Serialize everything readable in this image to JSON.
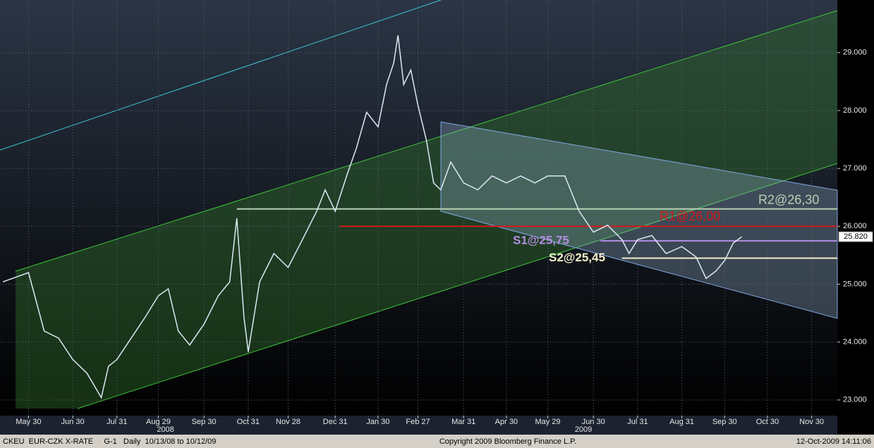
{
  "chart_data": {
    "type": "line",
    "header": "CKEU  EUR-CZK X-RATE     G-1   Daily  10/13/08 to 10/12/09",
    "copyright": "Copyright 2009 Bloomberg Finance L.P.",
    "timestamp": "12-Oct-2009 14:11:06",
    "xlim": [
      "2008-05-10",
      "2009-12-18"
    ],
    "ylim": [
      22.73,
      29.91
    ],
    "xticks": [
      {
        "value": "2008-05-30",
        "label": "May 30"
      },
      {
        "value": "2008-06-30",
        "label": "Jun 30"
      },
      {
        "value": "2008-07-31",
        "label": "Jul 31"
      },
      {
        "value": "2008-08-29",
        "label": "Aug 29"
      },
      {
        "value": "2008-09-30",
        "label": "Sep 30"
      },
      {
        "value": "2008-10-31",
        "label": "Oct 31"
      },
      {
        "value": "2008-11-28",
        "label": "Nov 28"
      },
      {
        "value": "2008-12-31",
        "label": "Dec 31"
      },
      {
        "value": "2009-01-30",
        "label": "Jan 30"
      },
      {
        "value": "2009-02-27",
        "label": "Feb 27"
      },
      {
        "value": "2009-03-31",
        "label": "Mar 31"
      },
      {
        "value": "2009-04-30",
        "label": "Apr 30"
      },
      {
        "value": "2009-05-29",
        "label": "May 29"
      },
      {
        "value": "2009-06-30",
        "label": "Jun 30"
      },
      {
        "value": "2009-07-31",
        "label": "Jul 31"
      },
      {
        "value": "2009-08-31",
        "label": "Aug 31"
      },
      {
        "value": "2009-09-30",
        "label": "Sep 30"
      },
      {
        "value": "2009-10-30",
        "label": "Oct 30"
      },
      {
        "value": "2009-11-30",
        "label": "Nov 30"
      }
    ],
    "year_ticks": [
      {
        "value": "2008-09-03",
        "label": "2008"
      },
      {
        "value": "2009-06-23",
        "label": "2009"
      }
    ],
    "yticks": [
      {
        "value": 23,
        "label": "23.000"
      },
      {
        "value": 24,
        "label": "24.000"
      },
      {
        "value": 25,
        "label": "25.000"
      },
      {
        "value": 26,
        "label": "26.000"
      },
      {
        "value": 27,
        "label": "27.000"
      },
      {
        "value": 28,
        "label": "28.000"
      },
      {
        "value": 29,
        "label": "29.000"
      }
    ],
    "grid": true,
    "series": [
      {
        "name": "EUR-CZK",
        "color": "#dce8f4",
        "x": [
          "2008-05-12",
          "2008-05-30",
          "2008-06-10",
          "2008-06-20",
          "2008-06-30",
          "2008-07-10",
          "2008-07-20",
          "2008-07-25",
          "2008-07-31",
          "2008-08-10",
          "2008-08-20",
          "2008-08-29",
          "2008-09-05",
          "2008-09-12",
          "2008-09-20",
          "2008-09-30",
          "2008-10-10",
          "2008-10-18",
          "2008-10-23",
          "2008-10-28",
          "2008-10-31",
          "2008-11-08",
          "2008-11-18",
          "2008-11-28",
          "2008-12-08",
          "2008-12-18",
          "2008-12-24",
          "2008-12-31",
          "2009-01-08",
          "2009-01-15",
          "2009-01-22",
          "2009-01-30",
          "2009-02-05",
          "2009-02-10",
          "2009-02-13",
          "2009-02-17",
          "2009-02-22",
          "2009-02-27",
          "2009-03-05",
          "2009-03-10",
          "2009-03-15",
          "2009-03-22",
          "2009-03-31",
          "2009-04-10",
          "2009-04-20",
          "2009-04-30",
          "2009-05-10",
          "2009-05-20",
          "2009-05-29",
          "2009-06-10",
          "2009-06-20",
          "2009-06-30",
          "2009-07-10",
          "2009-07-20",
          "2009-07-25",
          "2009-07-31",
          "2009-08-10",
          "2009-08-20",
          "2009-08-31",
          "2009-09-10",
          "2009-09-17",
          "2009-09-24",
          "2009-09-30",
          "2009-10-06",
          "2009-10-12"
        ],
        "values": [
          25.04,
          25.2,
          24.19,
          24.07,
          23.7,
          23.46,
          23.04,
          23.58,
          23.7,
          24.07,
          24.44,
          24.8,
          24.92,
          24.19,
          23.95,
          24.31,
          24.8,
          25.04,
          26.14,
          24.44,
          23.83,
          25.04,
          25.53,
          25.29,
          25.77,
          26.26,
          26.63,
          26.26,
          26.87,
          27.36,
          27.97,
          27.72,
          28.45,
          28.82,
          29.3,
          28.45,
          28.7,
          28.09,
          27.48,
          26.75,
          26.63,
          27.11,
          26.75,
          26.63,
          26.87,
          26.75,
          26.87,
          26.75,
          26.87,
          26.87,
          26.26,
          25.9,
          26.02,
          25.77,
          25.53,
          25.77,
          25.84,
          25.53,
          25.65,
          25.47,
          25.1,
          25.23,
          25.41,
          25.71,
          25.82
        ]
      }
    ],
    "last": {
      "value": 25.82,
      "label": "25.820"
    },
    "levels": [
      {
        "label": "R2@26,30",
        "value": 26.3,
        "start": "2008-10-23",
        "color": "#b9d2b3"
      },
      {
        "label": "R1@26,00",
        "value": 26.0,
        "start": "2009-01-03",
        "color": "#d21a1a"
      },
      {
        "label": "S1@25,75",
        "value": 25.75,
        "start": "2009-07-05",
        "color": "#b58ee0"
      },
      {
        "label": "S2@25,45",
        "value": 25.45,
        "start": "2009-07-20",
        "color": "#f2efc8"
      }
    ]
  }
}
